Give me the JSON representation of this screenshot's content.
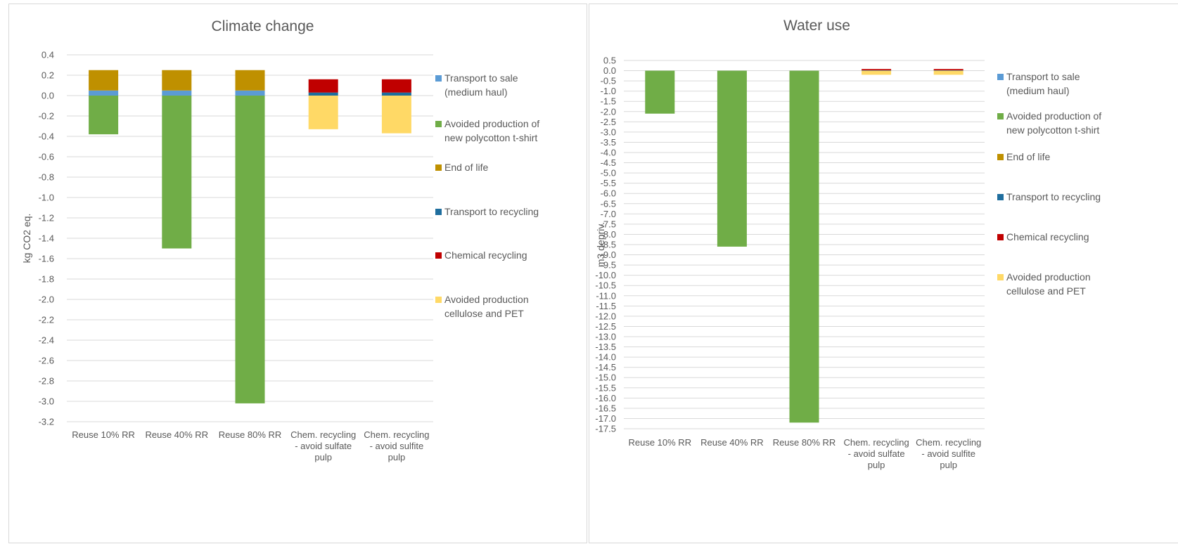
{
  "colors": {
    "transport_sale": "#5B9BD5",
    "avoided_new": "#70AD47",
    "end_of_life": "#BF9000",
    "transport_recycling": "#1F6E9E",
    "chemical_recycling": "#C00000",
    "avoided_cellulose": "#FFD966",
    "grid": "#d9d9d9"
  },
  "legend": [
    {
      "key": "transport_sale",
      "lines": [
        "Transport to sale",
        "(medium haul)"
      ]
    },
    {
      "key": "avoided_new",
      "lines": [
        "Avoided production of",
        "new polycotton t-shirt"
      ]
    },
    {
      "key": "end_of_life",
      "lines": [
        "End of life"
      ]
    },
    {
      "key": "transport_recycling",
      "lines": [
        "Transport to recycling"
      ]
    },
    {
      "key": "chemical_recycling",
      "lines": [
        "Chemical recycling"
      ]
    },
    {
      "key": "avoided_cellulose",
      "lines": [
        "Avoided production",
        "cellulose and PET"
      ]
    }
  ],
  "chart_data": [
    {
      "type": "bar",
      "stacked": true,
      "title": "Climate change",
      "ylabel": "kg CO2 eq.",
      "ylim": [
        -3.2,
        0.4
      ],
      "ytick_step": 0.2,
      "categories": [
        [
          "Reuse 10% RR"
        ],
        [
          "Reuse 40% RR"
        ],
        [
          "Reuse 80% RR"
        ],
        [
          "Chem. recycling",
          "- avoid sulfate",
          "pulp"
        ],
        [
          "Chem. recycling",
          "- avoid sulfite",
          "pulp"
        ]
      ],
      "series": [
        {
          "key": "transport_sale",
          "name": "Transport to sale (medium haul)",
          "values": [
            0.05,
            0.05,
            0.05,
            0,
            0
          ]
        },
        {
          "key": "avoided_new",
          "name": "Avoided production of new polycotton t-shirt",
          "values": [
            -0.38,
            -1.5,
            -3.02,
            0,
            0
          ]
        },
        {
          "key": "end_of_life",
          "name": "End of life",
          "values": [
            0.2,
            0.2,
            0.2,
            0,
            0
          ]
        },
        {
          "key": "transport_recycling",
          "name": "Transport to recycling",
          "values": [
            0,
            0,
            0,
            0.03,
            0.03
          ]
        },
        {
          "key": "chemical_recycling",
          "name": "Chemical recycling",
          "values": [
            0,
            0,
            0,
            0.13,
            0.13
          ]
        },
        {
          "key": "avoided_cellulose",
          "name": "Avoided production cellulose and PET",
          "values": [
            0,
            0,
            0,
            -0.33,
            -0.37
          ]
        }
      ]
    },
    {
      "type": "bar",
      "stacked": true,
      "title": "Water use",
      "ylabel": "m3 depriv.",
      "ylim": [
        -17.5,
        0.5
      ],
      "ytick_step": 0.5,
      "categories": [
        [
          "Reuse 10% RR"
        ],
        [
          "Reuse 40% RR"
        ],
        [
          "Reuse 80% RR"
        ],
        [
          "Chem. recycling",
          "- avoid sulfate",
          "pulp"
        ],
        [
          "Chem. recycling",
          "- avoid sulfite",
          "pulp"
        ]
      ],
      "series": [
        {
          "key": "transport_sale",
          "name": "Transport to sale (medium haul)",
          "values": [
            0,
            0,
            0,
            0,
            0
          ]
        },
        {
          "key": "avoided_new",
          "name": "Avoided production of new polycotton t-shirt",
          "values": [
            -2.1,
            -8.6,
            -17.2,
            0,
            0
          ]
        },
        {
          "key": "end_of_life",
          "name": "End of life",
          "values": [
            0,
            0,
            0,
            0,
            0
          ]
        },
        {
          "key": "transport_recycling",
          "name": "Transport to recycling",
          "values": [
            0,
            0,
            0,
            0.02,
            0.02
          ]
        },
        {
          "key": "chemical_recycling",
          "name": "Chemical recycling",
          "values": [
            0,
            0,
            0,
            0.06,
            0.06
          ]
        },
        {
          "key": "avoided_cellulose",
          "name": "Avoided production cellulose and PET",
          "values": [
            0,
            0,
            0,
            -0.2,
            -0.2
          ]
        }
      ]
    }
  ]
}
